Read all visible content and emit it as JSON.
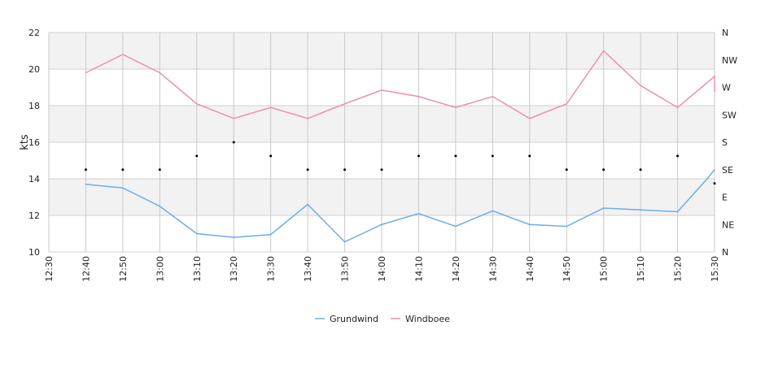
{
  "chart_data": {
    "type": "line",
    "x_labels": [
      "12:30",
      "12:40",
      "12:50",
      "13:00",
      "13:10",
      "13:20",
      "13:30",
      "13:40",
      "13:50",
      "14:00",
      "14:10",
      "14:20",
      "14:30",
      "14:40",
      "14:50",
      "15:00",
      "15:10",
      "15:20",
      "15:30"
    ],
    "ylabel": "kts",
    "ylim": [
      10,
      22
    ],
    "y_ticks": [
      "10",
      "12",
      "14",
      "16",
      "18",
      "20",
      "22"
    ],
    "direction_axis": {
      "labels": [
        "N",
        "NE",
        "E",
        "SE",
        "S",
        "SW",
        "W",
        "NW",
        "N"
      ]
    },
    "series": [
      {
        "name": "Grundwind",
        "color": "#6aaee8",
        "x": [
          "12:40",
          "12:50",
          "13:00",
          "13:10",
          "13:20",
          "13:30",
          "13:40",
          "13:50",
          "14:00",
          "14:10",
          "14:20",
          "14:30",
          "14:40",
          "14:50",
          "15:00",
          "15:10",
          "15:20",
          "15:28",
          "15:30"
        ],
        "values": [
          13.7,
          13.5,
          12.5,
          11.0,
          10.8,
          10.95,
          12.6,
          10.55,
          11.5,
          12.1,
          11.4,
          12.25,
          11.5,
          11.4,
          12.4,
          12.3,
          12.2,
          14.0,
          14.5
        ]
      },
      {
        "name": "Windboee",
        "color": "#ef8db8",
        "x": [
          "12:40",
          "12:50",
          "13:00",
          "13:10",
          "13:20",
          "13:30",
          "13:40",
          "13:50",
          "14:00",
          "14:10",
          "14:20",
          "14:30",
          "14:40",
          "14:50",
          "15:00",
          "15:10",
          "15:20",
          "15:30",
          "15:30"
        ],
        "values": [
          19.8,
          20.8,
          19.8,
          18.1,
          17.3,
          17.9,
          17.3,
          18.1,
          18.85,
          18.5,
          17.9,
          18.5,
          17.3,
          18.1,
          21.0,
          19.1,
          17.9,
          19.6,
          18.8
        ]
      }
    ],
    "direction_points": {
      "x": [
        "12:40",
        "12:50",
        "13:00",
        "13:10",
        "13:20",
        "13:30",
        "13:40",
        "13:50",
        "14:00",
        "14:10",
        "14:20",
        "14:30",
        "14:40",
        "14:50",
        "15:00",
        "15:10",
        "15:20",
        "15:30"
      ],
      "values": [
        "SE",
        "SE",
        "SE",
        "S/SE",
        "S",
        "S/SE",
        "SE",
        "SE",
        "SE",
        "S/SE",
        "S/SE",
        "S/SE",
        "S/SE",
        "SE",
        "SE",
        "SE",
        "S/SE",
        "SE/E"
      ]
    },
    "grid": true,
    "legend": "bottom-center"
  }
}
